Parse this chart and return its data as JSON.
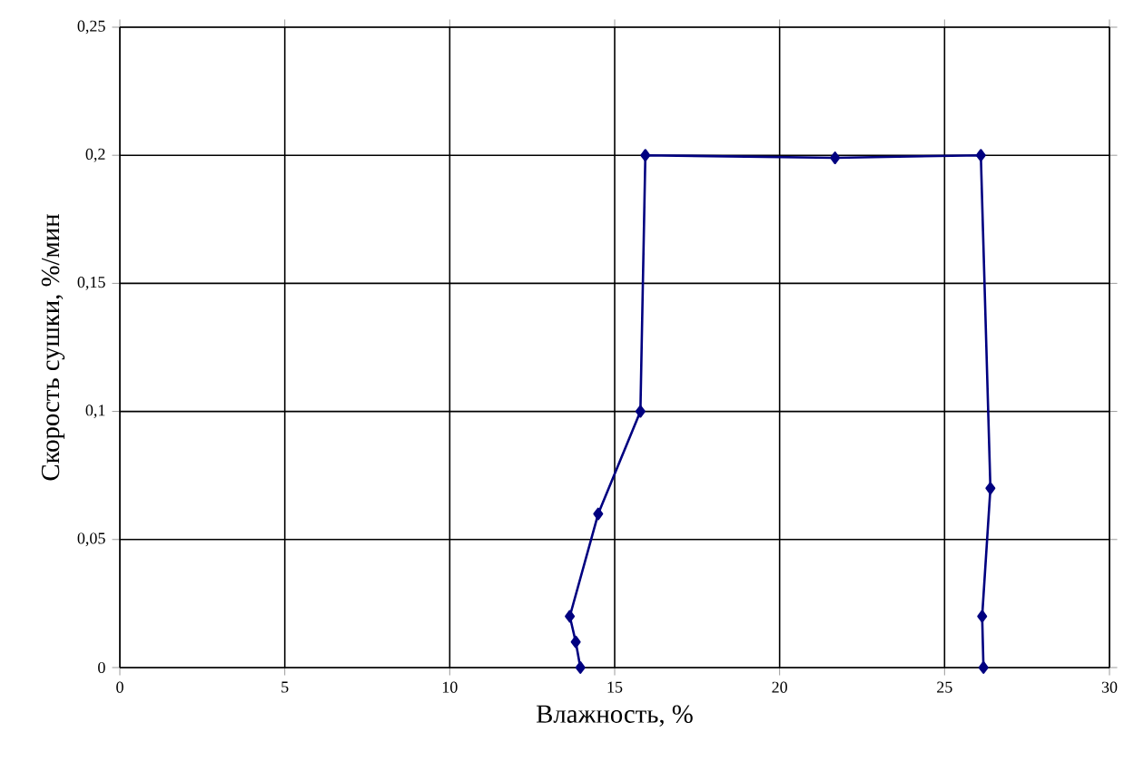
{
  "chart_data": {
    "type": "line",
    "xlabel": "Влажность, %",
    "ylabel": "Скорость сушки, %/мин",
    "series": [
      {
        "color": "#000080",
        "x": [
          13.96,
          13.82,
          13.64,
          14.5,
          15.78,
          15.93,
          21.68,
          26.1,
          26.39,
          26.14,
          26.18
        ],
        "values": [
          0,
          0.01,
          0.02,
          0.06,
          0.1,
          0.2,
          0.199,
          0.2,
          0.07,
          0.02,
          0
        ]
      }
    ],
    "xlim": [
      0,
      30
    ],
    "xticks": [
      0,
      5,
      10,
      15,
      20,
      25,
      30
    ],
    "ylim": [
      0,
      0.25
    ],
    "yticks": [
      {
        "value": 0,
        "label": "0"
      },
      {
        "value": 0.05,
        "label": "0,05"
      },
      {
        "value": 0.1,
        "label": "0,1"
      },
      {
        "value": 0.15,
        "label": "0,15"
      },
      {
        "value": 0.2,
        "label": "0,2"
      },
      {
        "value": 0.25,
        "label": "0,25"
      }
    ],
    "grid": true,
    "marker": "diamond",
    "line_style": "solid"
  }
}
